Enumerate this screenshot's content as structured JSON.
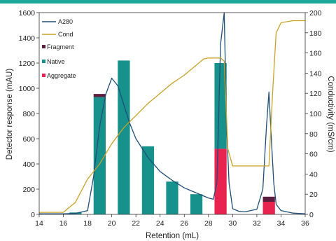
{
  "chart_data": {
    "type": "bar",
    "xlabel": "Retention  (mL)",
    "ylabel_left": "Detector response (mAU)",
    "ylabel_right": "Conductivity (mS/cm)",
    "xlim": [
      14,
      36
    ],
    "ylim_left": [
      0,
      1600
    ],
    "ylim_right": [
      0,
      200
    ],
    "xticks": [
      "14",
      "16",
      "18",
      "20",
      "22",
      "24",
      "26",
      "28",
      "30",
      "32",
      "34",
      "36"
    ],
    "yticks_left": [
      "0",
      "200",
      "400",
      "600",
      "800",
      "1000",
      "1200",
      "1400",
      "1600"
    ],
    "yticks_right": [
      "0",
      "20",
      "40",
      "60",
      "80",
      "100",
      "120",
      "140",
      "160",
      "180",
      "200"
    ],
    "legend_position": "top-left",
    "legend": [
      "A280",
      "Cond",
      "Fragment",
      "Native",
      "Aggregate"
    ],
    "colors": {
      "A280": "#1f4e79",
      "Cond": "#c9a227",
      "Fragment": "#5c1f3f",
      "Native": "#17918c",
      "Aggregate": "#e8234f",
      "accent_bar": "#1aa89a"
    },
    "bars": {
      "width_mL": 1.0,
      "positions": [
        17,
        19,
        21,
        23,
        25,
        27,
        29,
        33
      ],
      "Aggregate": [
        0,
        0,
        0,
        0,
        0,
        0,
        520,
        100
      ],
      "Native": [
        15,
        930,
        1220,
        540,
        260,
        160,
        680,
        0
      ],
      "Fragment": [
        0,
        25,
        0,
        0,
        0,
        0,
        0,
        40
      ]
    },
    "series": [
      {
        "name": "A280",
        "axis": "left",
        "x": [
          14,
          16,
          17,
          18,
          18.5,
          19,
          19.5,
          20,
          20.5,
          21,
          21.5,
          22,
          23,
          24,
          25,
          26,
          27,
          28,
          28.4,
          28.7,
          29,
          29.3,
          29.5,
          29.7,
          30,
          30.5,
          31,
          32,
          32.5,
          32.8,
          33,
          33.2,
          33.4,
          33.6,
          34,
          35,
          36
        ],
        "y": [
          5,
          5,
          8,
          30,
          300,
          700,
          950,
          1080,
          1020,
          870,
          720,
          600,
          450,
          340,
          270,
          210,
          170,
          130,
          120,
          250,
          1350,
          1650,
          700,
          250,
          45,
          25,
          20,
          40,
          200,
          700,
          970,
          600,
          250,
          80,
          30,
          10,
          5
        ]
      },
      {
        "name": "Cond",
        "axis": "right",
        "x": [
          14,
          16,
          17,
          18,
          19,
          20,
          21,
          22,
          23,
          24,
          25,
          26,
          27,
          27.6,
          28,
          28.5,
          29,
          29.3,
          29.6,
          30,
          31,
          32,
          32.5,
          33,
          33.3,
          33.6,
          34,
          35,
          36
        ],
        "y": [
          2,
          2,
          12,
          35,
          50,
          70,
          86,
          98,
          110,
          120,
          130,
          138,
          148,
          154,
          155,
          155,
          155,
          152,
          65,
          48,
          48,
          48,
          48,
          48,
          120,
          180,
          190,
          192,
          192
        ]
      }
    ]
  }
}
